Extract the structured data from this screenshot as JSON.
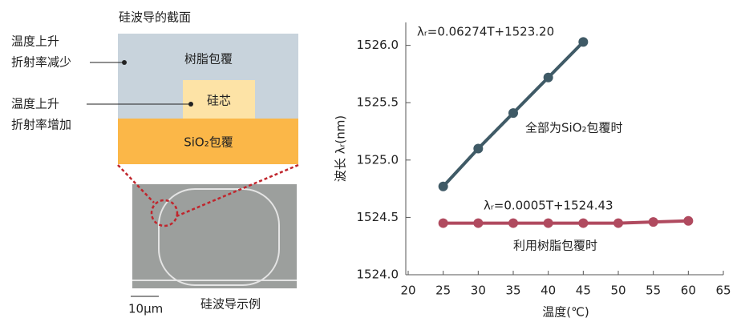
{
  "chart_data": {
    "type": "line",
    "xlabel": "温度(℃)",
    "ylabel": "波长 λᵣ(nm)",
    "xlim": [
      20,
      65
    ],
    "xticks": [
      20,
      25,
      30,
      35,
      40,
      45,
      50,
      55,
      60,
      65
    ],
    "ylim": [
      1524.0,
      1526.2
    ],
    "yticks": [
      {
        "value": 1524.0,
        "label": "1524.0"
      },
      {
        "value": 1524.5,
        "label": "1524.5"
      },
      {
        "value": 1525.0,
        "label": "1525.0"
      },
      {
        "value": 1525.5,
        "label": "1525.5"
      },
      {
        "value": 1526.0,
        "label": "1526.0"
      }
    ],
    "series": [
      {
        "name": "全部为SiO₂包覆时",
        "color": "#3f5a66",
        "equation": "λᵣ=0.06274T+1523.20",
        "x": [
          25,
          30,
          35,
          40,
          45
        ],
        "values": [
          1524.77,
          1525.1,
          1525.41,
          1525.72,
          1526.03
        ]
      },
      {
        "name": "利用树脂包覆时",
        "color": "#b04a5f",
        "equation": "λᵣ=0.0005T+1524.43",
        "x": [
          25,
          30,
          35,
          40,
          45,
          50,
          55,
          60
        ],
        "values": [
          1524.45,
          1524.45,
          1524.45,
          1524.45,
          1524.45,
          1524.45,
          1524.46,
          1524.47
        ]
      }
    ]
  },
  "diagram": {
    "title": "硅波导的截面",
    "resin": "树脂包覆",
    "core": "硅芯",
    "sio2": "SiO₂包覆",
    "note1": [
      "温度上升",
      "折射率减少"
    ],
    "note2": [
      "温度上升",
      "折射率增加"
    ],
    "scale": "10μm",
    "caption": "硅波导示例"
  }
}
